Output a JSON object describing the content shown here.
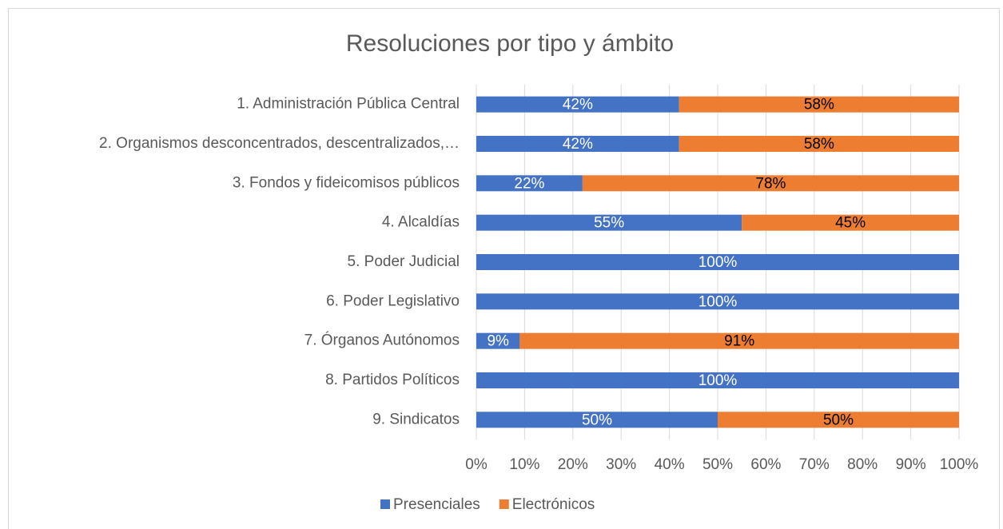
{
  "chart_data": {
    "type": "stacked_bar_horizontal",
    "title": "Resoluciones por tipo y ámbito",
    "categories": [
      "1. Administración Pública Central",
      "2. Organismos desconcentrados, descentralizados,…",
      "3. Fondos y fideicomisos públicos",
      "4. Alcaldías",
      "5. Poder Judicial",
      "6. Poder Legislativo",
      "7. Órganos Autónomos",
      "8. Partidos Políticos",
      "9. Sindicatos"
    ],
    "series": [
      {
        "name": "Presenciales",
        "color": "#4472c4",
        "label_color": "#ffffff",
        "values": [
          42,
          42,
          22,
          55,
          100,
          100,
          9,
          100,
          50
        ],
        "value_labels": [
          "42%",
          "42%",
          "22%",
          "55%",
          "100%",
          "100%",
          "9%",
          "100%",
          "50%"
        ]
      },
      {
        "name": "Electrónicos",
        "color": "#ed7d31",
        "label_color": "#000000",
        "values": [
          58,
          58,
          78,
          45,
          0,
          0,
          91,
          0,
          50
        ],
        "value_labels": [
          "58%",
          "58%",
          "78%",
          "45%",
          null,
          null,
          "91%",
          null,
          "50%"
        ]
      }
    ],
    "xlim": [
      0,
      100
    ],
    "xticks": [
      {
        "value": 0,
        "label": "0%"
      },
      {
        "value": 10,
        "label": "10%"
      },
      {
        "value": 20,
        "label": "20%"
      },
      {
        "value": 30,
        "label": "30%"
      },
      {
        "value": 40,
        "label": "40%"
      },
      {
        "value": 50,
        "label": "50%"
      },
      {
        "value": 60,
        "label": "60%"
      },
      {
        "value": 70,
        "label": "70%"
      },
      {
        "value": 80,
        "label": "80%"
      },
      {
        "value": 90,
        "label": "90%"
      },
      {
        "value": 100,
        "label": "100%"
      }
    ],
    "grid": true,
    "legend": "bottom"
  }
}
